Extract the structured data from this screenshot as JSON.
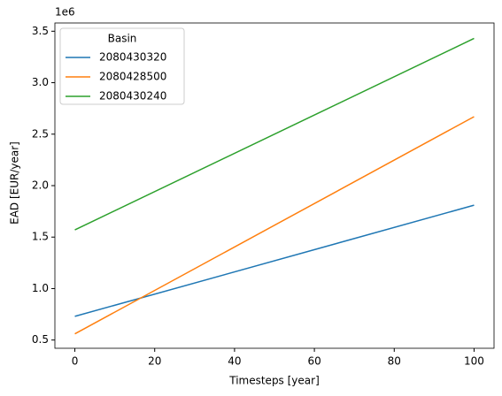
{
  "chart_data": {
    "type": "line",
    "xlabel": "Timesteps [year]",
    "ylabel": "EAD [EUR/year]",
    "y_offset_label": "1e6",
    "x": [
      0,
      100
    ],
    "series": [
      {
        "name": "2080430320",
        "color": "#1f77b4",
        "values": [
          0.73,
          1.81
        ]
      },
      {
        "name": "2080428500",
        "color": "#ff7f0e",
        "values": [
          0.56,
          2.67
        ]
      },
      {
        "name": "2080430240",
        "color": "#2ca02c",
        "values": [
          1.57,
          3.43
        ]
      }
    ],
    "legend_title": "Basin",
    "legend": "upper left",
    "xlim": [
      -5,
      105
    ],
    "xticks": [
      0,
      20,
      40,
      60,
      80,
      100
    ],
    "ylim": [
      0.42,
      3.58
    ],
    "yticks": [
      0.5,
      {
        "value": 1.0,
        "label": "1.0"
      },
      1.5,
      {
        "value": 2.0,
        "label": "2.0"
      },
      2.5,
      {
        "value": 3.0,
        "label": "3.0"
      },
      3.5
    ],
    "grid": false
  }
}
